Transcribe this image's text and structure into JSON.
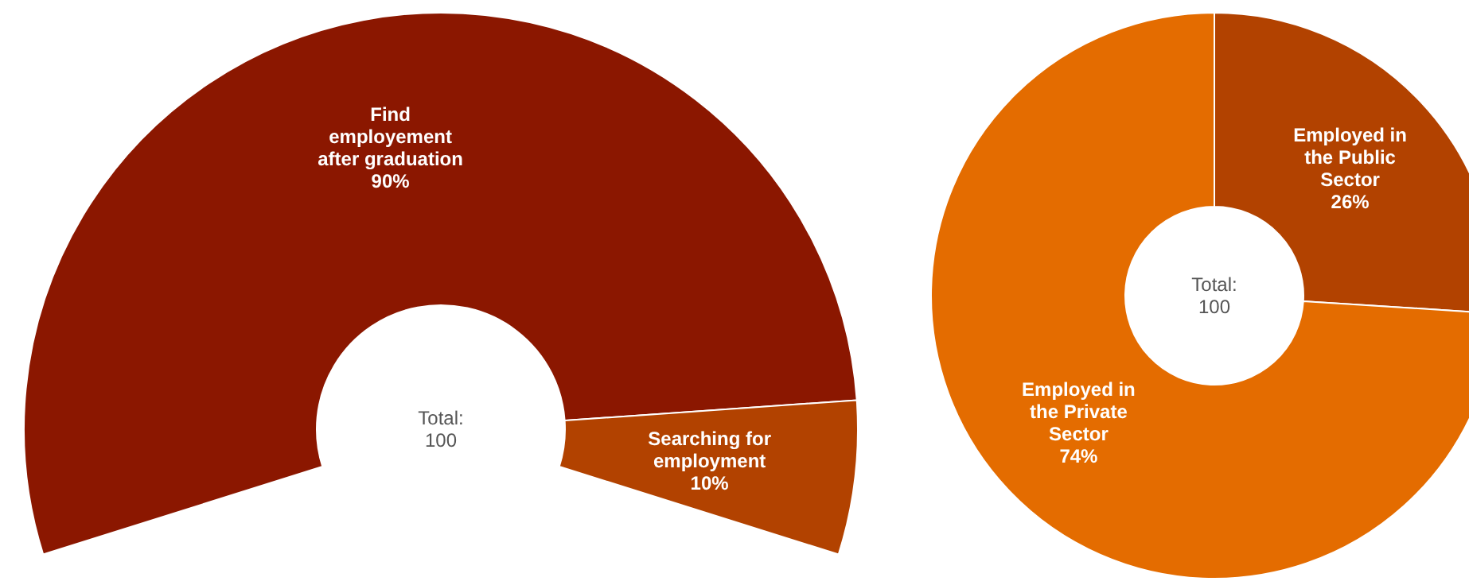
{
  "chart_data": [
    {
      "type": "donut",
      "categories": [
        "Find employement after graduation",
        "Searching for employment"
      ],
      "values": [
        90,
        10
      ],
      "colors": [
        "#8b1700",
        "#b24200"
      ],
      "value_labels": [
        "90%",
        "10%"
      ],
      "annotations": [
        "Total:",
        "100"
      ]
    },
    {
      "type": "donut",
      "categories": [
        "Employed in the Public Sector",
        "Employed in the Private Sector"
      ],
      "values": [
        26,
        74
      ],
      "colors": [
        "#b24200",
        "#e46c00"
      ],
      "value_labels": [
        "26%",
        "74%"
      ],
      "annotations": [
        "Total:",
        "100"
      ]
    }
  ]
}
